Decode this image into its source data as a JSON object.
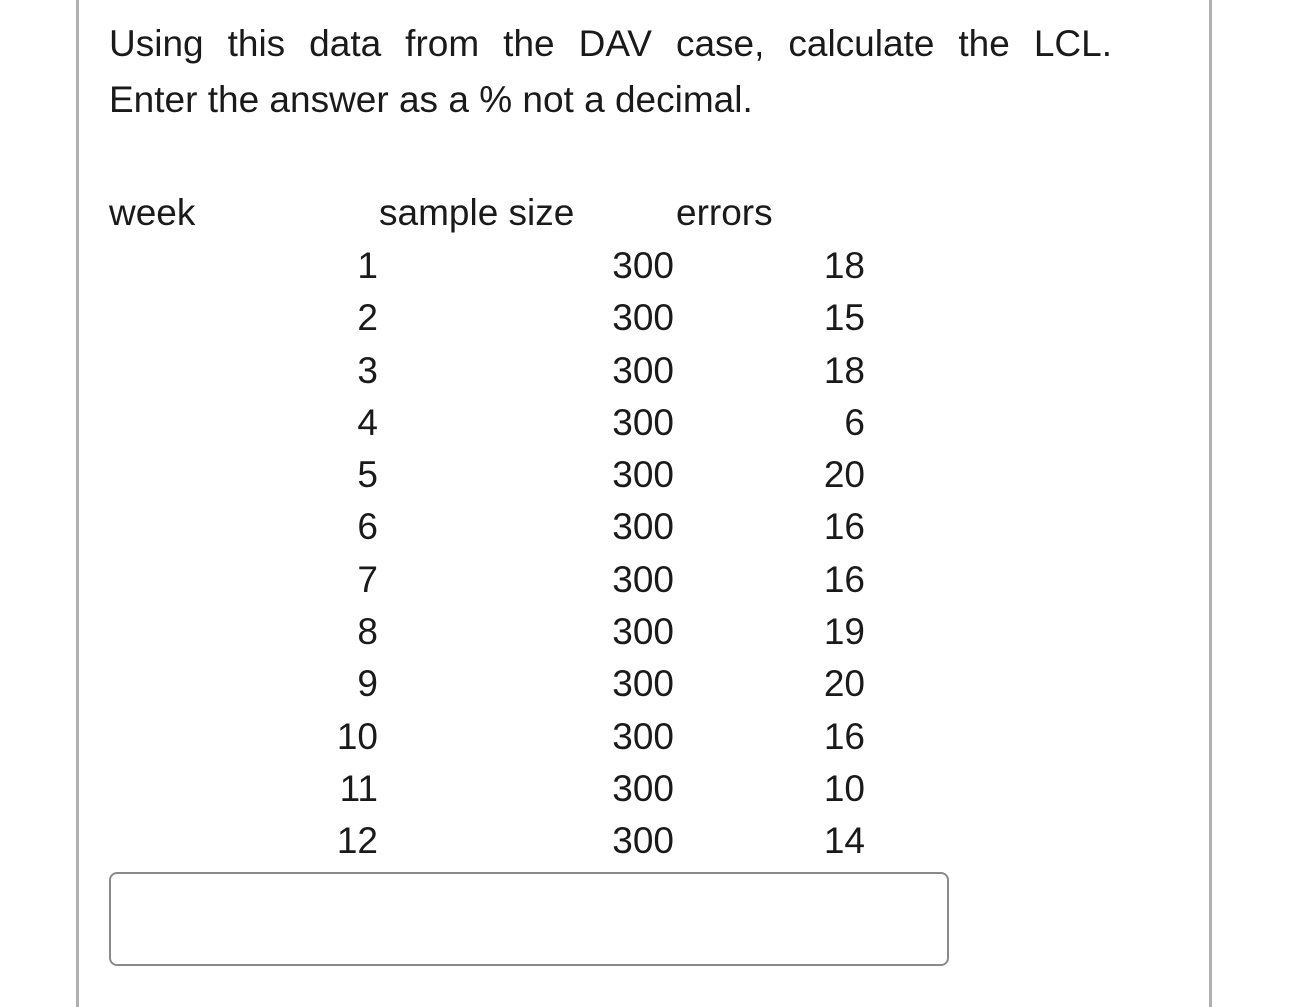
{
  "question": {
    "line1": "Using this data from the DAV case, calculate the LCL.",
    "line2": "Enter the answer as a % not a decimal."
  },
  "table": {
    "headers": {
      "week": "week",
      "sample_size": "sample size",
      "errors": "errors"
    },
    "rows": [
      {
        "week": "1",
        "sample_size": "300",
        "errors": "18"
      },
      {
        "week": "2",
        "sample_size": "300",
        "errors": "15"
      },
      {
        "week": "3",
        "sample_size": "300",
        "errors": "18"
      },
      {
        "week": "4",
        "sample_size": "300",
        "errors": "6"
      },
      {
        "week": "5",
        "sample_size": "300",
        "errors": "20"
      },
      {
        "week": "6",
        "sample_size": "300",
        "errors": "16"
      },
      {
        "week": "7",
        "sample_size": "300",
        "errors": "16"
      },
      {
        "week": "8",
        "sample_size": "300",
        "errors": "19"
      },
      {
        "week": "9",
        "sample_size": "300",
        "errors": "20"
      },
      {
        "week": "10",
        "sample_size": "300",
        "errors": "16"
      },
      {
        "week": "11",
        "sample_size": "300",
        "errors": "10"
      },
      {
        "week": "12",
        "sample_size": "300",
        "errors": "14"
      }
    ]
  },
  "answer": {
    "value": ""
  }
}
